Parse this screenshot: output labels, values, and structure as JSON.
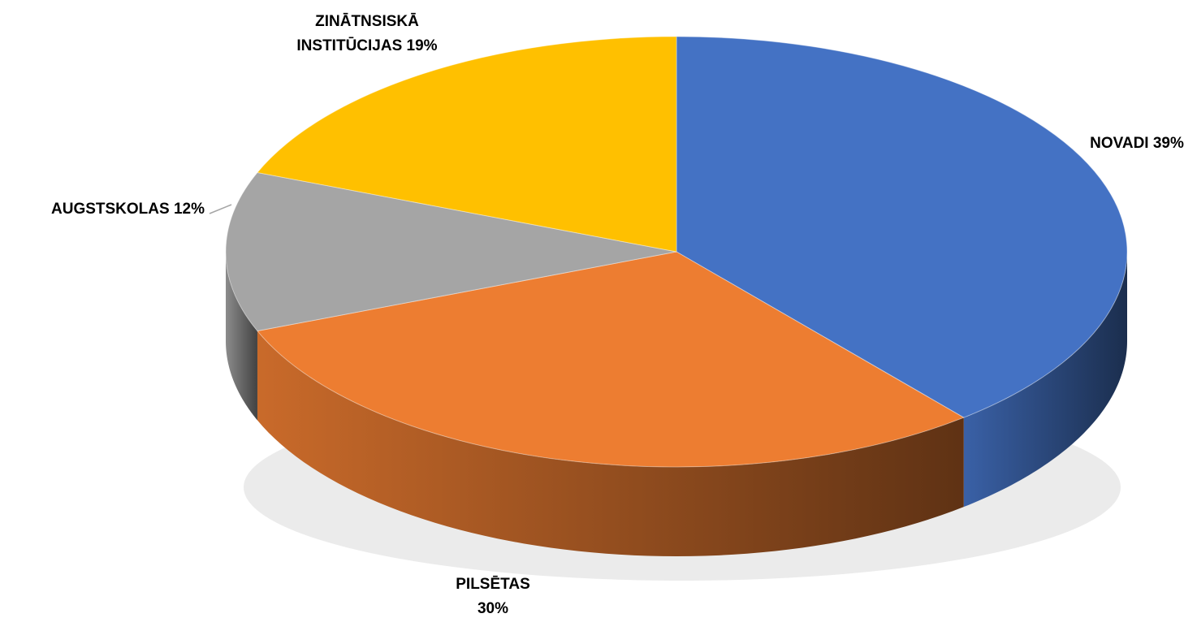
{
  "chart_data": {
    "type": "pie",
    "categories": [
      "NOVADI",
      "PILSĒTAS",
      "AUGSTSKOLAS",
      "ZINĀTNSISKĀ INSTITŪCIJAS"
    ],
    "values": [
      39,
      30,
      12,
      19
    ],
    "value_labels": [
      "39%",
      "30%",
      "12%",
      "19%"
    ],
    "colors": [
      "#4472c4",
      "#ed7d31",
      "#a5a5a5",
      "#ffc000"
    ]
  }
}
